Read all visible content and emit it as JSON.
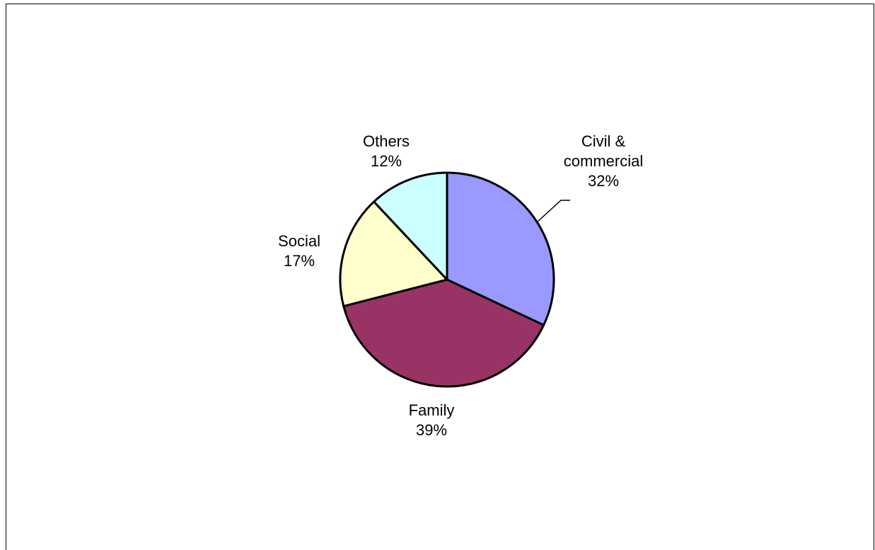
{
  "chart_data": {
    "type": "pie",
    "title": "",
    "legend": "none",
    "slices": [
      {
        "name": "Civil & commercial",
        "label_lines": [
          "Civil &",
          "commercial",
          "32%"
        ],
        "value": 32,
        "color": "#9999ff"
      },
      {
        "name": "Family",
        "label_lines": [
          "Family",
          "39%"
        ],
        "value": 39,
        "color": "#993366"
      },
      {
        "name": "Social",
        "label_lines": [
          "Social",
          "17%"
        ],
        "value": 17,
        "color": "#ffffcc"
      },
      {
        "name": "Others",
        "label_lines": [
          "Others",
          "12%"
        ],
        "value": 12,
        "color": "#ccffff"
      }
    ]
  }
}
